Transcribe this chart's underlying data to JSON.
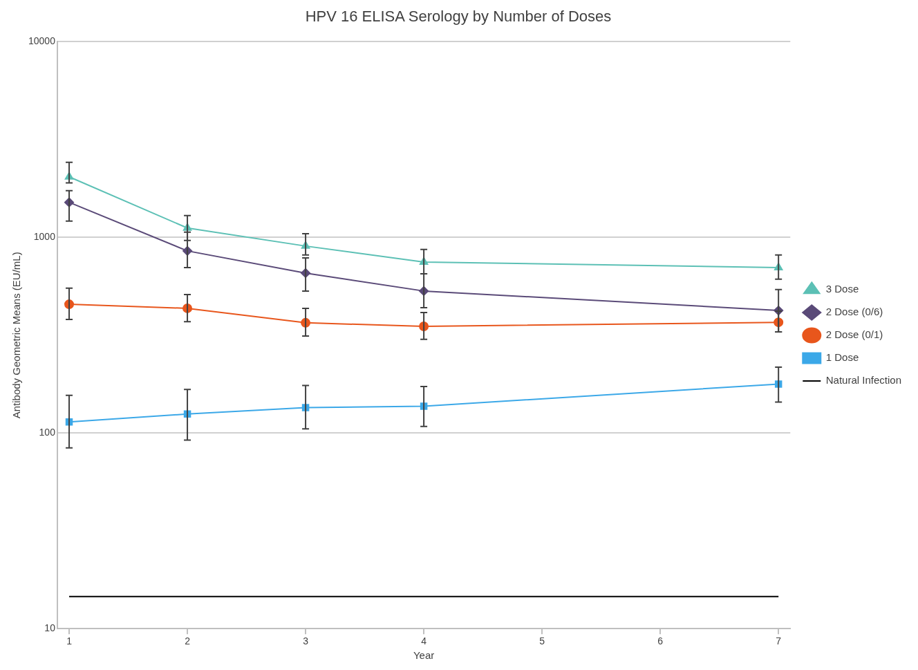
{
  "chart_data": {
    "type": "line",
    "title": "HPV 16 ELISA Serology by Number of Doses",
    "xlabel": "Year",
    "ylabel": "Antibody Geometric Means (EU/mL)",
    "xlim": [
      0.9,
      7.1
    ],
    "xticks": [
      1,
      2,
      3,
      4,
      5,
      6,
      7
    ],
    "ylim": [
      10,
      10000
    ],
    "yticks": [
      10,
      100,
      1000,
      10000
    ],
    "log": "y",
    "grid": "y",
    "legend": "right",
    "series": [
      {
        "name": "3 Dose",
        "color": "#5cc0b5",
        "marker": "triangle",
        "x": [
          1,
          2,
          3,
          4,
          7
        ],
        "values": [
          2040,
          1117,
          903,
          748,
          701
        ],
        "errors": [
          [
            1900,
            2420
          ],
          [
            964,
            1294
          ],
          [
            813,
            1045
          ],
          [
            652,
            867
          ],
          [
            611,
            813
          ]
        ]
      },
      {
        "name": "2 Dose (0/6)",
        "color": "#5a4a78",
        "marker": "diamond",
        "x": [
          1,
          2,
          3,
          4,
          7
        ],
        "values": [
          1510,
          853,
          657,
          532,
          423
        ],
        "errors": [
          [
            1211,
            1734
          ],
          [
            701,
            1063
          ],
          [
            532,
            786
          ],
          [
            437,
            652
          ],
          [
            329,
            541
          ]
        ]
      },
      {
        "name": "2 Dose (0/1)",
        "color": "#e8561c",
        "marker": "circle",
        "x": [
          1,
          2,
          3,
          4,
          7
        ],
        "values": [
          455,
          434,
          366,
          351,
          368
        ],
        "errors": [
          [
            381,
            550
          ],
          [
            371,
            510
          ],
          [
            313,
            434
          ],
          [
            301,
            413
          ],
          [
            329,
            420
          ]
        ]
      },
      {
        "name": "1 Dose",
        "color": "#3ba8e8",
        "marker": "square",
        "x": [
          1,
          2,
          3,
          4,
          7
        ],
        "values": [
          114,
          125,
          135,
          137,
          178
        ],
        "errors": [
          [
            84,
            156
          ],
          [
            92,
            167
          ],
          [
            105,
            175
          ],
          [
            108,
            173
          ],
          [
            144,
            217
          ]
        ]
      },
      {
        "name": "Natural Infection",
        "color": "#000000",
        "marker": "none",
        "x": [
          1,
          7
        ],
        "values": [
          14.6,
          14.6
        ]
      }
    ]
  }
}
